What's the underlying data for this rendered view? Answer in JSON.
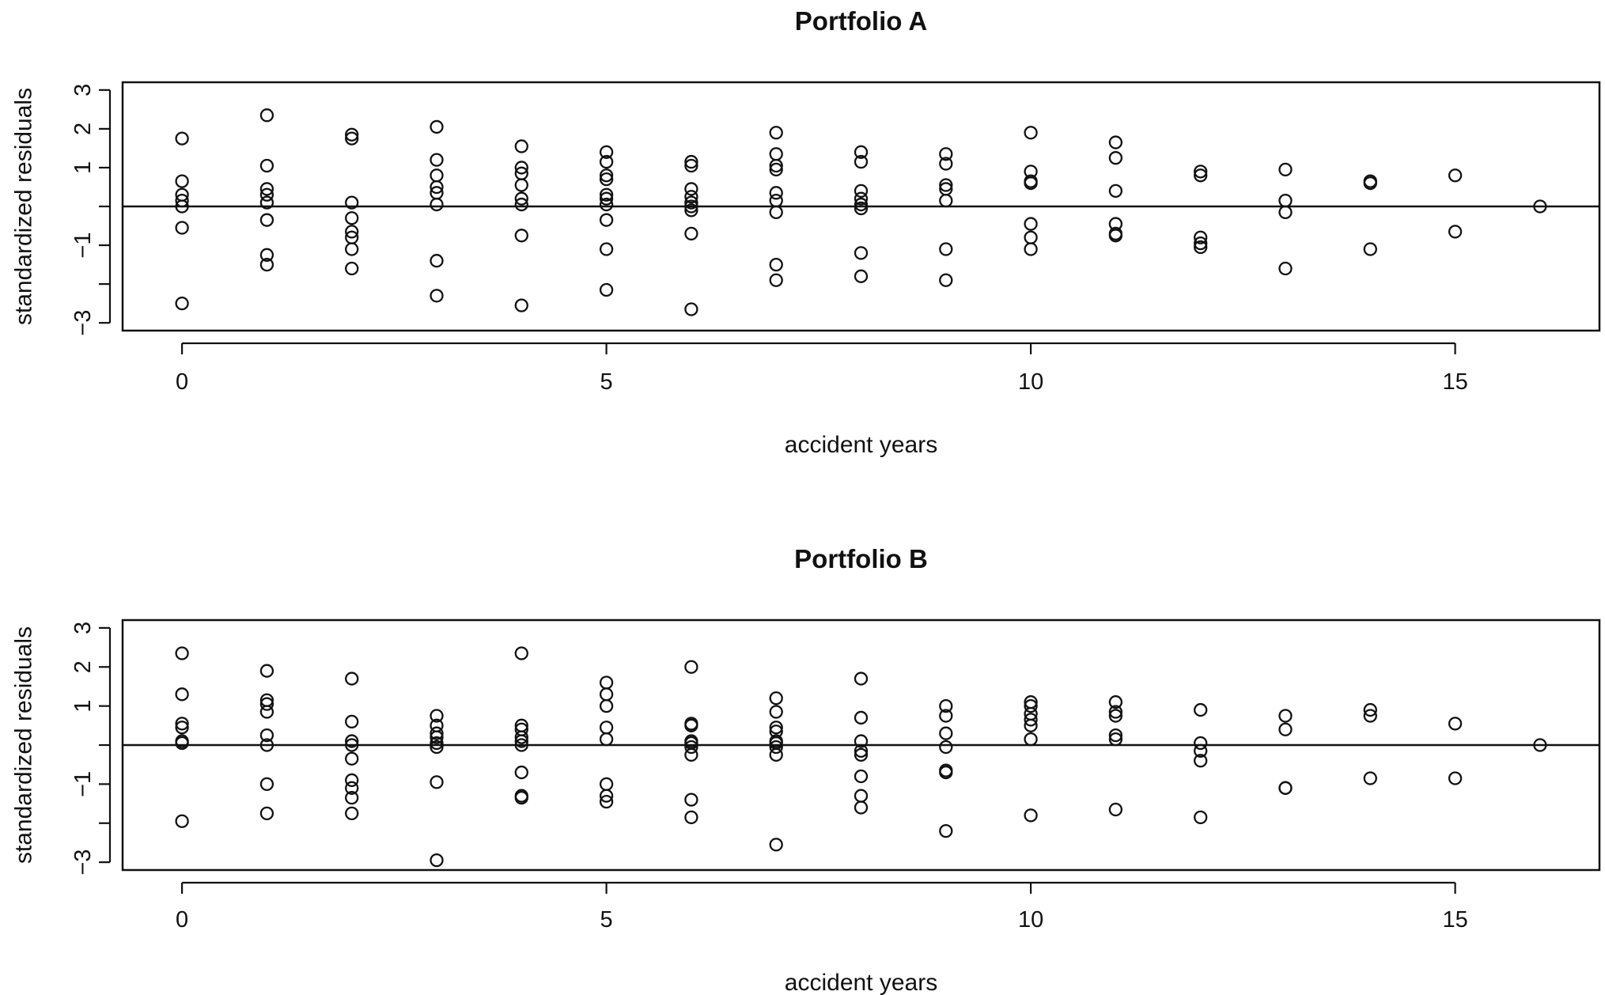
{
  "chart_data": [
    {
      "type": "scatter",
      "title": "Portfolio A",
      "xlabel": "accident years",
      "ylabel": "standardized residuals",
      "xlim": [
        -0.7,
        16.7
      ],
      "ylim": [
        -3.2,
        3.2
      ],
      "xticks": [
        0,
        5,
        10,
        15
      ],
      "xtick_labels": [
        "0",
        "5",
        "10",
        "15"
      ],
      "yticks": [
        -3,
        -2,
        -1,
        0,
        1,
        2,
        3
      ],
      "ytick_labels": [
        "−3",
        "",
        "−1",
        "",
        "1",
        "2",
        "3"
      ],
      "reference_line": 0,
      "grid": false,
      "legend": "none",
      "points": [
        {
          "x": 0,
          "y": 1.75
        },
        {
          "x": 0,
          "y": 0.65
        },
        {
          "x": 0,
          "y": 0.3
        },
        {
          "x": 0,
          "y": 0.15
        },
        {
          "x": 0,
          "y": 0.0
        },
        {
          "x": 0,
          "y": -0.55
        },
        {
          "x": 0,
          "y": -2.5
        },
        {
          "x": 1,
          "y": 2.35
        },
        {
          "x": 1,
          "y": 1.05
        },
        {
          "x": 1,
          "y": 0.45
        },
        {
          "x": 1,
          "y": 0.3
        },
        {
          "x": 1,
          "y": 0.1
        },
        {
          "x": 1,
          "y": -0.35
        },
        {
          "x": 1,
          "y": -1.25
        },
        {
          "x": 1,
          "y": -1.5
        },
        {
          "x": 2,
          "y": 1.85
        },
        {
          "x": 2,
          "y": 1.75
        },
        {
          "x": 2,
          "y": 0.1
        },
        {
          "x": 2,
          "y": -0.3
        },
        {
          "x": 2,
          "y": -0.65
        },
        {
          "x": 2,
          "y": -0.8
        },
        {
          "x": 2,
          "y": -1.1
        },
        {
          "x": 2,
          "y": -1.6
        },
        {
          "x": 3,
          "y": 2.05
        },
        {
          "x": 3,
          "y": 1.2
        },
        {
          "x": 3,
          "y": 0.8
        },
        {
          "x": 3,
          "y": 0.5
        },
        {
          "x": 3,
          "y": 0.35
        },
        {
          "x": 3,
          "y": 0.05
        },
        {
          "x": 3,
          "y": -1.4
        },
        {
          "x": 3,
          "y": -2.3
        },
        {
          "x": 4,
          "y": 1.55
        },
        {
          "x": 4,
          "y": 1.0
        },
        {
          "x": 4,
          "y": 0.85
        },
        {
          "x": 4,
          "y": 0.55
        },
        {
          "x": 4,
          "y": 0.2
        },
        {
          "x": 4,
          "y": 0.05
        },
        {
          "x": 4,
          "y": -0.75
        },
        {
          "x": 4,
          "y": -2.55
        },
        {
          "x": 5,
          "y": 1.4
        },
        {
          "x": 5,
          "y": 1.15
        },
        {
          "x": 5,
          "y": 0.8
        },
        {
          "x": 5,
          "y": 0.7
        },
        {
          "x": 5,
          "y": 0.3
        },
        {
          "x": 5,
          "y": 0.2
        },
        {
          "x": 5,
          "y": 0.05
        },
        {
          "x": 5,
          "y": -0.35
        },
        {
          "x": 5,
          "y": -1.1
        },
        {
          "x": 5,
          "y": -2.15
        },
        {
          "x": 6,
          "y": 1.15
        },
        {
          "x": 6,
          "y": 1.05
        },
        {
          "x": 6,
          "y": 0.45
        },
        {
          "x": 6,
          "y": 0.25
        },
        {
          "x": 6,
          "y": 0.1
        },
        {
          "x": 6,
          "y": 0.0
        },
        {
          "x": 6,
          "y": -0.1
        },
        {
          "x": 6,
          "y": -0.7
        },
        {
          "x": 6,
          "y": -2.65
        },
        {
          "x": 7,
          "y": 1.9
        },
        {
          "x": 7,
          "y": 1.35
        },
        {
          "x": 7,
          "y": 1.05
        },
        {
          "x": 7,
          "y": 0.95
        },
        {
          "x": 7,
          "y": 0.35
        },
        {
          "x": 7,
          "y": 0.15
        },
        {
          "x": 7,
          "y": -0.15
        },
        {
          "x": 7,
          "y": -1.5
        },
        {
          "x": 7,
          "y": -1.9
        },
        {
          "x": 8,
          "y": 1.4
        },
        {
          "x": 8,
          "y": 1.15
        },
        {
          "x": 8,
          "y": 0.4
        },
        {
          "x": 8,
          "y": 0.2
        },
        {
          "x": 8,
          "y": 0.05
        },
        {
          "x": 8,
          "y": -0.05
        },
        {
          "x": 8,
          "y": -1.2
        },
        {
          "x": 8,
          "y": -1.8
        },
        {
          "x": 9,
          "y": 1.35
        },
        {
          "x": 9,
          "y": 1.1
        },
        {
          "x": 9,
          "y": 0.55
        },
        {
          "x": 9,
          "y": 0.45
        },
        {
          "x": 9,
          "y": 0.15
        },
        {
          "x": 9,
          "y": -1.1
        },
        {
          "x": 9,
          "y": -1.9
        },
        {
          "x": 10,
          "y": 1.9
        },
        {
          "x": 10,
          "y": 0.9
        },
        {
          "x": 10,
          "y": 0.65
        },
        {
          "x": 10,
          "y": 0.6
        },
        {
          "x": 10,
          "y": -0.45
        },
        {
          "x": 10,
          "y": -0.8
        },
        {
          "x": 10,
          "y": -1.1
        },
        {
          "x": 11,
          "y": 1.65
        },
        {
          "x": 11,
          "y": 1.25
        },
        {
          "x": 11,
          "y": 0.4
        },
        {
          "x": 11,
          "y": -0.45
        },
        {
          "x": 11,
          "y": -0.7
        },
        {
          "x": 11,
          "y": -0.75
        },
        {
          "x": 12,
          "y": 0.9
        },
        {
          "x": 12,
          "y": 0.8
        },
        {
          "x": 12,
          "y": -0.8
        },
        {
          "x": 12,
          "y": -0.95
        },
        {
          "x": 12,
          "y": -1.05
        },
        {
          "x": 13,
          "y": 0.95
        },
        {
          "x": 13,
          "y": 0.15
        },
        {
          "x": 13,
          "y": -0.15
        },
        {
          "x": 13,
          "y": -1.6
        },
        {
          "x": 14,
          "y": 0.65
        },
        {
          "x": 14,
          "y": 0.6
        },
        {
          "x": 14,
          "y": -1.1
        },
        {
          "x": 15,
          "y": 0.8
        },
        {
          "x": 15,
          "y": -0.65
        },
        {
          "x": 16,
          "y": 0.0
        }
      ]
    },
    {
      "type": "scatter",
      "title": "Portfolio B",
      "xlabel": "accident years",
      "ylabel": "standardized residuals",
      "xlim": [
        -0.7,
        16.7
      ],
      "ylim": [
        -3.2,
        3.2
      ],
      "xticks": [
        0,
        5,
        10,
        15
      ],
      "xtick_labels": [
        "0",
        "5",
        "10",
        "15"
      ],
      "yticks": [
        -3,
        -2,
        -1,
        0,
        1,
        2,
        3
      ],
      "ytick_labels": [
        "−3",
        "",
        "−1",
        "",
        "1",
        "2",
        "3"
      ],
      "reference_line": 0,
      "grid": false,
      "legend": "none",
      "points": [
        {
          "x": 0,
          "y": 2.35
        },
        {
          "x": 0,
          "y": 1.3
        },
        {
          "x": 0,
          "y": 0.55
        },
        {
          "x": 0,
          "y": 0.45
        },
        {
          "x": 0,
          "y": 0.1
        },
        {
          "x": 0,
          "y": 0.05
        },
        {
          "x": 0,
          "y": -1.95
        },
        {
          "x": 1,
          "y": 1.9
        },
        {
          "x": 1,
          "y": 1.15
        },
        {
          "x": 1,
          "y": 1.05
        },
        {
          "x": 1,
          "y": 0.85
        },
        {
          "x": 1,
          "y": 0.25
        },
        {
          "x": 1,
          "y": 0.0
        },
        {
          "x": 1,
          "y": -1.0
        },
        {
          "x": 1,
          "y": -1.75
        },
        {
          "x": 2,
          "y": 1.7
        },
        {
          "x": 2,
          "y": 0.6
        },
        {
          "x": 2,
          "y": 0.1
        },
        {
          "x": 2,
          "y": 0.0
        },
        {
          "x": 2,
          "y": -0.35
        },
        {
          "x": 2,
          "y": -0.9
        },
        {
          "x": 2,
          "y": -1.1
        },
        {
          "x": 2,
          "y": -1.35
        },
        {
          "x": 2,
          "y": -1.75
        },
        {
          "x": 3,
          "y": 0.75
        },
        {
          "x": 3,
          "y": 0.5
        },
        {
          "x": 3,
          "y": 0.3
        },
        {
          "x": 3,
          "y": 0.2
        },
        {
          "x": 3,
          "y": 0.05
        },
        {
          "x": 3,
          "y": -0.05
        },
        {
          "x": 3,
          "y": -0.95
        },
        {
          "x": 3,
          "y": -2.95
        },
        {
          "x": 4,
          "y": 2.35
        },
        {
          "x": 4,
          "y": 0.5
        },
        {
          "x": 4,
          "y": 0.4
        },
        {
          "x": 4,
          "y": 0.2
        },
        {
          "x": 4,
          "y": 0.1
        },
        {
          "x": 4,
          "y": 0.0
        },
        {
          "x": 4,
          "y": -0.7
        },
        {
          "x": 4,
          "y": -1.3
        },
        {
          "x": 4,
          "y": -1.35
        },
        {
          "x": 5,
          "y": 1.6
        },
        {
          "x": 5,
          "y": 1.3
        },
        {
          "x": 5,
          "y": 1.0
        },
        {
          "x": 5,
          "y": 0.45
        },
        {
          "x": 5,
          "y": 0.15
        },
        {
          "x": 5,
          "y": -1.0
        },
        {
          "x": 5,
          "y": -1.3
        },
        {
          "x": 5,
          "y": -1.45
        },
        {
          "x": 6,
          "y": 2.0
        },
        {
          "x": 6,
          "y": 0.55
        },
        {
          "x": 6,
          "y": 0.5
        },
        {
          "x": 6,
          "y": 0.1
        },
        {
          "x": 6,
          "y": 0.05
        },
        {
          "x": 6,
          "y": -0.05
        },
        {
          "x": 6,
          "y": -0.25
        },
        {
          "x": 6,
          "y": -1.4
        },
        {
          "x": 6,
          "y": -1.85
        },
        {
          "x": 7,
          "y": 1.2
        },
        {
          "x": 7,
          "y": 0.85
        },
        {
          "x": 7,
          "y": 0.45
        },
        {
          "x": 7,
          "y": 0.35
        },
        {
          "x": 7,
          "y": 0.1
        },
        {
          "x": 7,
          "y": 0.05
        },
        {
          "x": 7,
          "y": -0.05
        },
        {
          "x": 7,
          "y": -0.25
        },
        {
          "x": 7,
          "y": -2.55
        },
        {
          "x": 8,
          "y": 1.7
        },
        {
          "x": 8,
          "y": 0.7
        },
        {
          "x": 8,
          "y": 0.1
        },
        {
          "x": 8,
          "y": -0.15
        },
        {
          "x": 8,
          "y": -0.25
        },
        {
          "x": 8,
          "y": -0.8
        },
        {
          "x": 8,
          "y": -1.3
        },
        {
          "x": 8,
          "y": -1.6
        },
        {
          "x": 9,
          "y": 1.0
        },
        {
          "x": 9,
          "y": 0.75
        },
        {
          "x": 9,
          "y": 0.3
        },
        {
          "x": 9,
          "y": -0.05
        },
        {
          "x": 9,
          "y": -0.65
        },
        {
          "x": 9,
          "y": -0.7
        },
        {
          "x": 9,
          "y": -2.2
        },
        {
          "x": 10,
          "y": 1.1
        },
        {
          "x": 10,
          "y": 1.0
        },
        {
          "x": 10,
          "y": 0.8
        },
        {
          "x": 10,
          "y": 0.65
        },
        {
          "x": 10,
          "y": 0.5
        },
        {
          "x": 10,
          "y": 0.15
        },
        {
          "x": 10,
          "y": -1.8
        },
        {
          "x": 11,
          "y": 1.1
        },
        {
          "x": 11,
          "y": 0.85
        },
        {
          "x": 11,
          "y": 0.75
        },
        {
          "x": 11,
          "y": 0.25
        },
        {
          "x": 11,
          "y": 0.15
        },
        {
          "x": 11,
          "y": -1.65
        },
        {
          "x": 12,
          "y": 0.9
        },
        {
          "x": 12,
          "y": 0.05
        },
        {
          "x": 12,
          "y": -0.15
        },
        {
          "x": 12,
          "y": -0.4
        },
        {
          "x": 12,
          "y": -1.85
        },
        {
          "x": 13,
          "y": 0.75
        },
        {
          "x": 13,
          "y": 0.4
        },
        {
          "x": 13,
          "y": -1.1
        },
        {
          "x": 13,
          "y": -1.1
        },
        {
          "x": 14,
          "y": 0.9
        },
        {
          "x": 14,
          "y": 0.75
        },
        {
          "x": 14,
          "y": -0.85
        },
        {
          "x": 15,
          "y": 0.55
        },
        {
          "x": 15,
          "y": -0.85
        },
        {
          "x": 16,
          "y": 0.0
        }
      ]
    }
  ]
}
